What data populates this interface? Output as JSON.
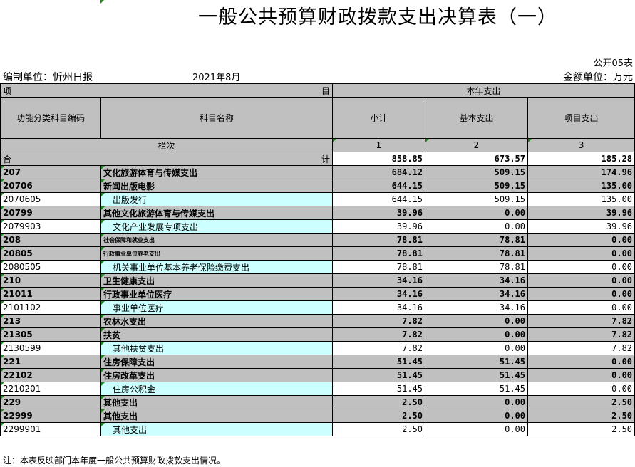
{
  "title": "一般公共预算财政拨款支出决算表（一）",
  "table_no": "公开05表",
  "unit_label": "编制单位：忻州日报社",
  "unit_label_visible": "编制单位：忻州日报",
  "date": "2021年8月",
  "amount_unit": "金额单位：万元",
  "header": {
    "item_left": "项",
    "item_right": "目",
    "current_year": "本年支出",
    "code": "功能分类科目编码",
    "name": "科目名称",
    "subtotal": "小计",
    "basic": "基本支出",
    "project": "项目支出",
    "col_index_label": "栏次",
    "col_1": "1",
    "col_2": "2",
    "col_3": "3"
  },
  "total": {
    "left": "合",
    "right": "计",
    "subtotal": "858.85",
    "basic": "673.57",
    "project": "185.28"
  },
  "rows": [
    {
      "code": "207",
      "name": "文化旅游体育与传媒支出",
      "subtotal": "684.12",
      "basic": "509.15",
      "project": "174.96",
      "bold": true
    },
    {
      "code": "20706",
      "name": "新闻出版电影",
      "subtotal": "644.15",
      "basic": "509.15",
      "project": "135.00",
      "bold": true
    },
    {
      "code": "2070605",
      "name": "出版发行",
      "subtotal": "644.15",
      "basic": "509.15",
      "project": "135.00",
      "bold": false
    },
    {
      "code": "20799",
      "name": "其他文化旅游体育与传媒支出",
      "subtotal": "39.96",
      "basic": "0.00",
      "project": "39.96",
      "bold": true
    },
    {
      "code": "2079903",
      "name": "文化产业发展专项支出",
      "subtotal": "39.96",
      "basic": "0.00",
      "project": "39.96",
      "bold": false
    },
    {
      "code": "208",
      "name": "社会保障和就业支出",
      "subtotal": "78.81",
      "basic": "78.81",
      "project": "0.00",
      "bold": true,
      "small": true
    },
    {
      "code": "20805",
      "name": "行政事业单位养老支出",
      "subtotal": "78.81",
      "basic": "78.81",
      "project": "0.00",
      "bold": true,
      "small": true
    },
    {
      "code": "2080505",
      "name": "机关事业单位基本养老保险缴费支出",
      "subtotal": "78.81",
      "basic": "78.81",
      "project": "0.00",
      "bold": false
    },
    {
      "code": "210",
      "name": "卫生健康支出",
      "subtotal": "34.16",
      "basic": "34.16",
      "project": "0.00",
      "bold": true
    },
    {
      "code": "21011",
      "name": "行政事业单位医疗",
      "subtotal": "34.16",
      "basic": "34.16",
      "project": "0.00",
      "bold": true
    },
    {
      "code": "2101102",
      "name": "事业单位医疗",
      "subtotal": "34.16",
      "basic": "34.16",
      "project": "0.00",
      "bold": false
    },
    {
      "code": "213",
      "name": "农林水支出",
      "subtotal": "7.82",
      "basic": "0.00",
      "project": "7.82",
      "bold": true
    },
    {
      "code": "21305",
      "name": "扶贫",
      "subtotal": "7.82",
      "basic": "0.00",
      "project": "7.82",
      "bold": true
    },
    {
      "code": "2130599",
      "name": "其他扶贫支出",
      "subtotal": "7.82",
      "basic": "0.00",
      "project": "7.82",
      "bold": false
    },
    {
      "code": "221",
      "name": "住房保障支出",
      "subtotal": "51.45",
      "basic": "51.45",
      "project": "0.00",
      "bold": true
    },
    {
      "code": "22102",
      "name": "住房改革支出",
      "subtotal": "51.45",
      "basic": "51.45",
      "project": "0.00",
      "bold": true
    },
    {
      "code": "2210201",
      "name": "住房公积金",
      "subtotal": "51.45",
      "basic": "51.45",
      "project": "0.00",
      "bold": false
    },
    {
      "code": "229",
      "name": "其他支出",
      "subtotal": "2.50",
      "basic": "0.00",
      "project": "2.50",
      "bold": true
    },
    {
      "code": "22999",
      "name": "其他支出",
      "subtotal": "2.50",
      "basic": "0.00",
      "project": "2.50",
      "bold": true
    },
    {
      "code": "2299901",
      "name": "其他支出",
      "subtotal": "2.50",
      "basic": "0.00",
      "project": "2.50",
      "bold": false
    }
  ],
  "note": "注：本表反映部门本年度一般公共预算财政拨款支出情况。",
  "colors": {
    "header_gray": "#c0c0c0",
    "detail_cyan": "#ccffff",
    "comment_marker": "#1a8a1a"
  }
}
